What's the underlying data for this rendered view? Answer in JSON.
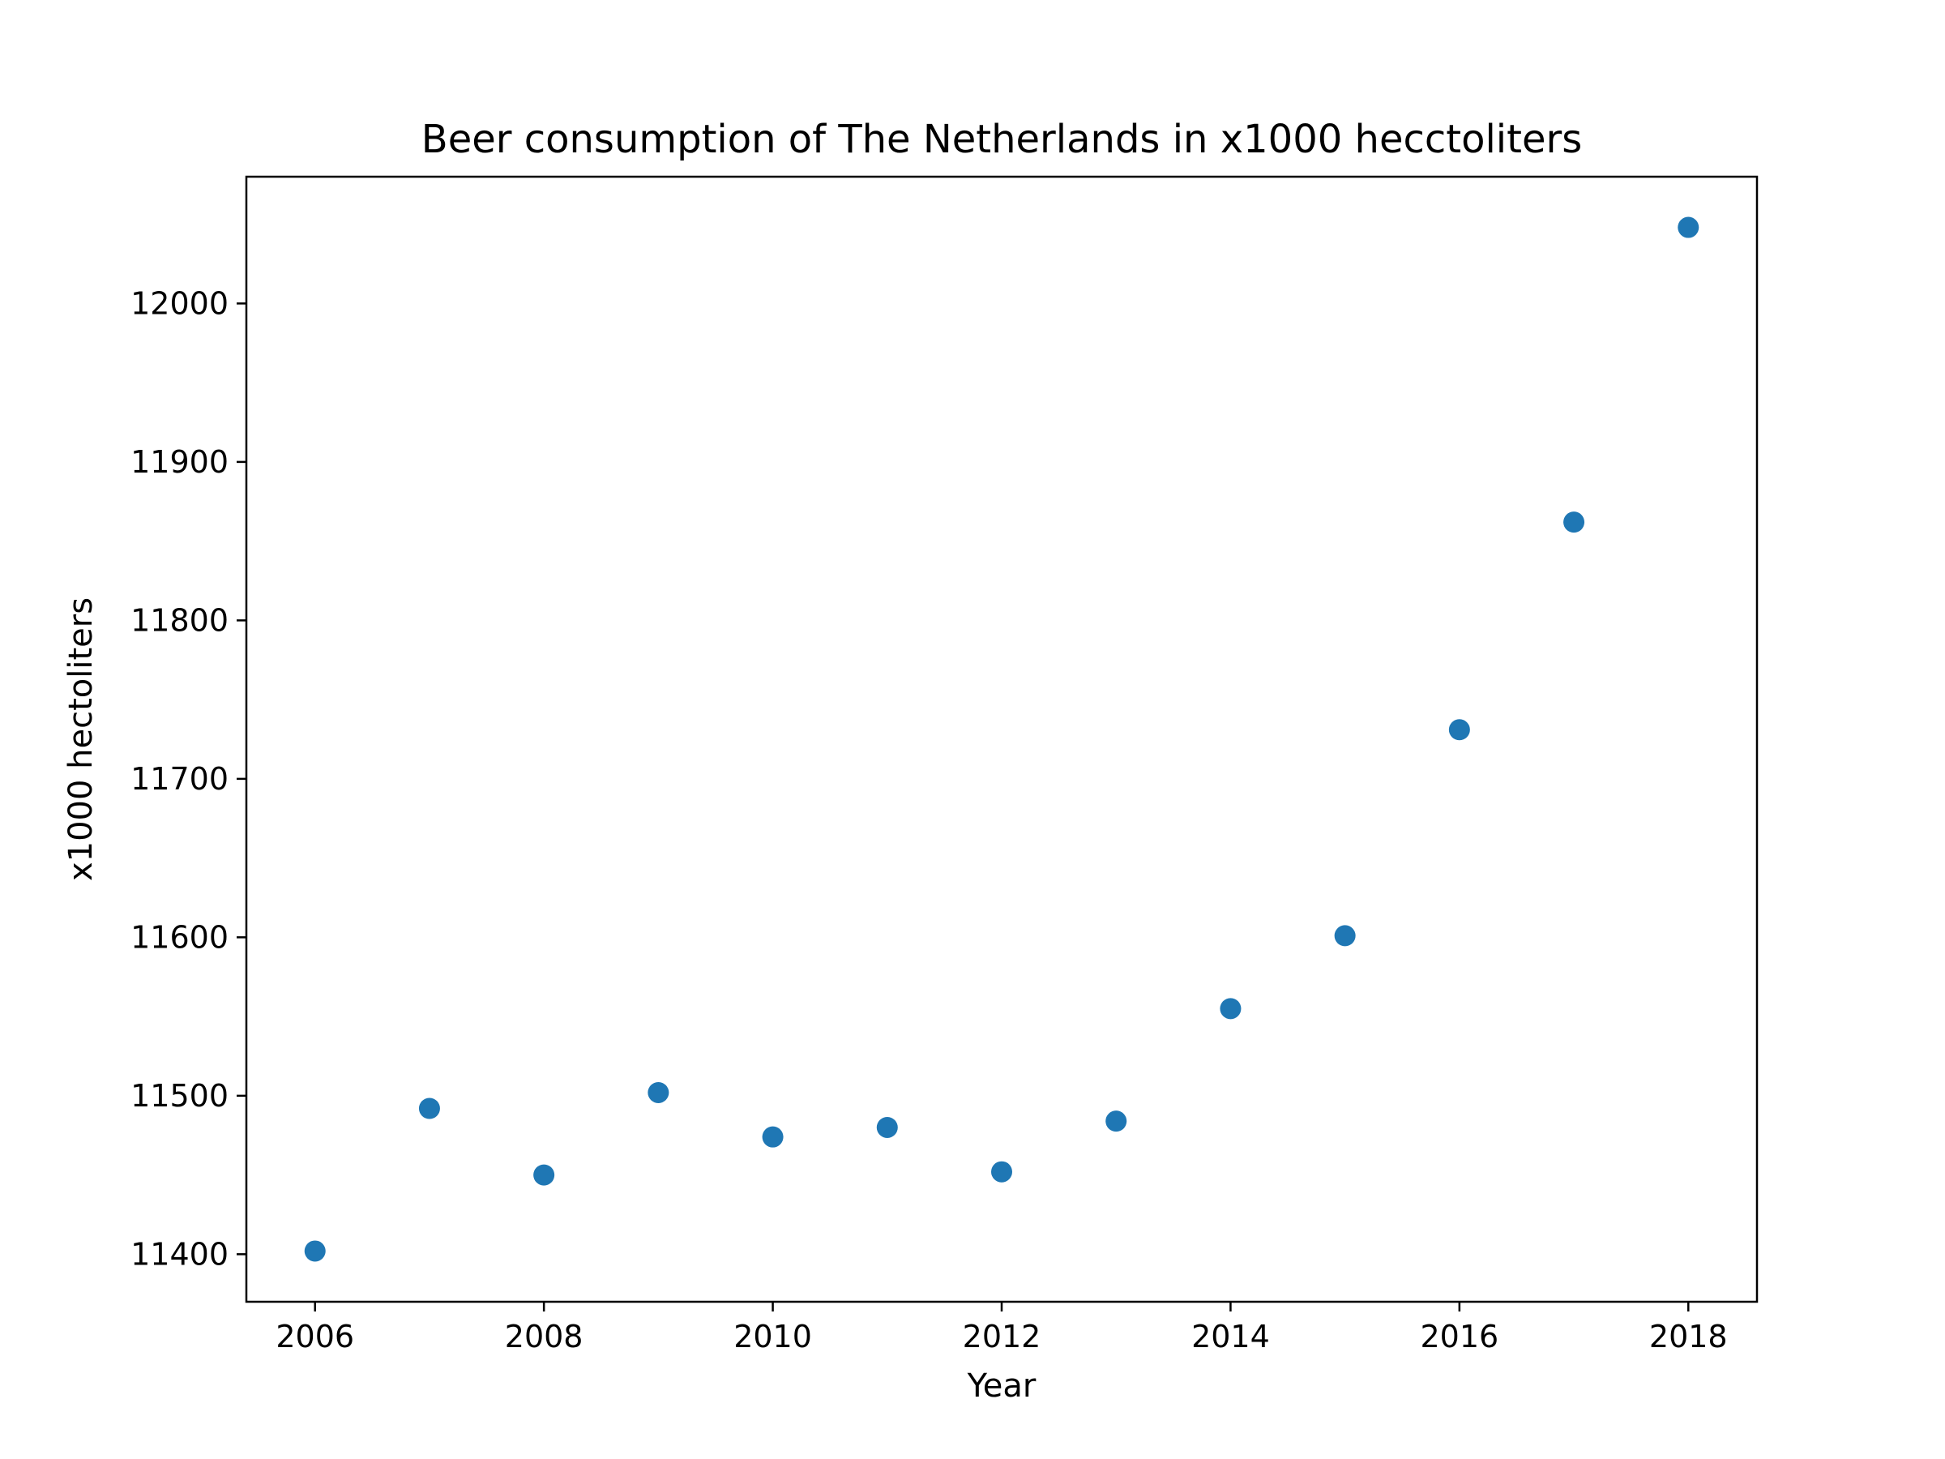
{
  "chart_data": {
    "type": "scatter",
    "title": "Beer consumption of The Netherlands in x1000 hecctoliters",
    "xlabel": "Year",
    "ylabel": "x1000 hectoliters",
    "x": [
      2006,
      2007,
      2008,
      2009,
      2010,
      2011,
      2012,
      2013,
      2014,
      2015,
      2016,
      2017,
      2018
    ],
    "y": [
      11402,
      11492,
      11450,
      11502,
      11474,
      11480,
      11452,
      11484,
      11555,
      11601,
      11731,
      11862,
      12048
    ],
    "xlim": [
      2005.4,
      2018.6
    ],
    "ylim": [
      11370,
      12080
    ],
    "xticks": [
      "2006",
      "2008",
      "2010",
      "2012",
      "2014",
      "2016",
      "2018"
    ],
    "yticks": [
      "11400",
      "11500",
      "11600",
      "11700",
      "11800",
      "11900",
      "12000"
    ],
    "grid": false,
    "legend": "none",
    "colors": {
      "marker": "#1f77b4",
      "axes": "#000000",
      "text": "#000000"
    }
  }
}
